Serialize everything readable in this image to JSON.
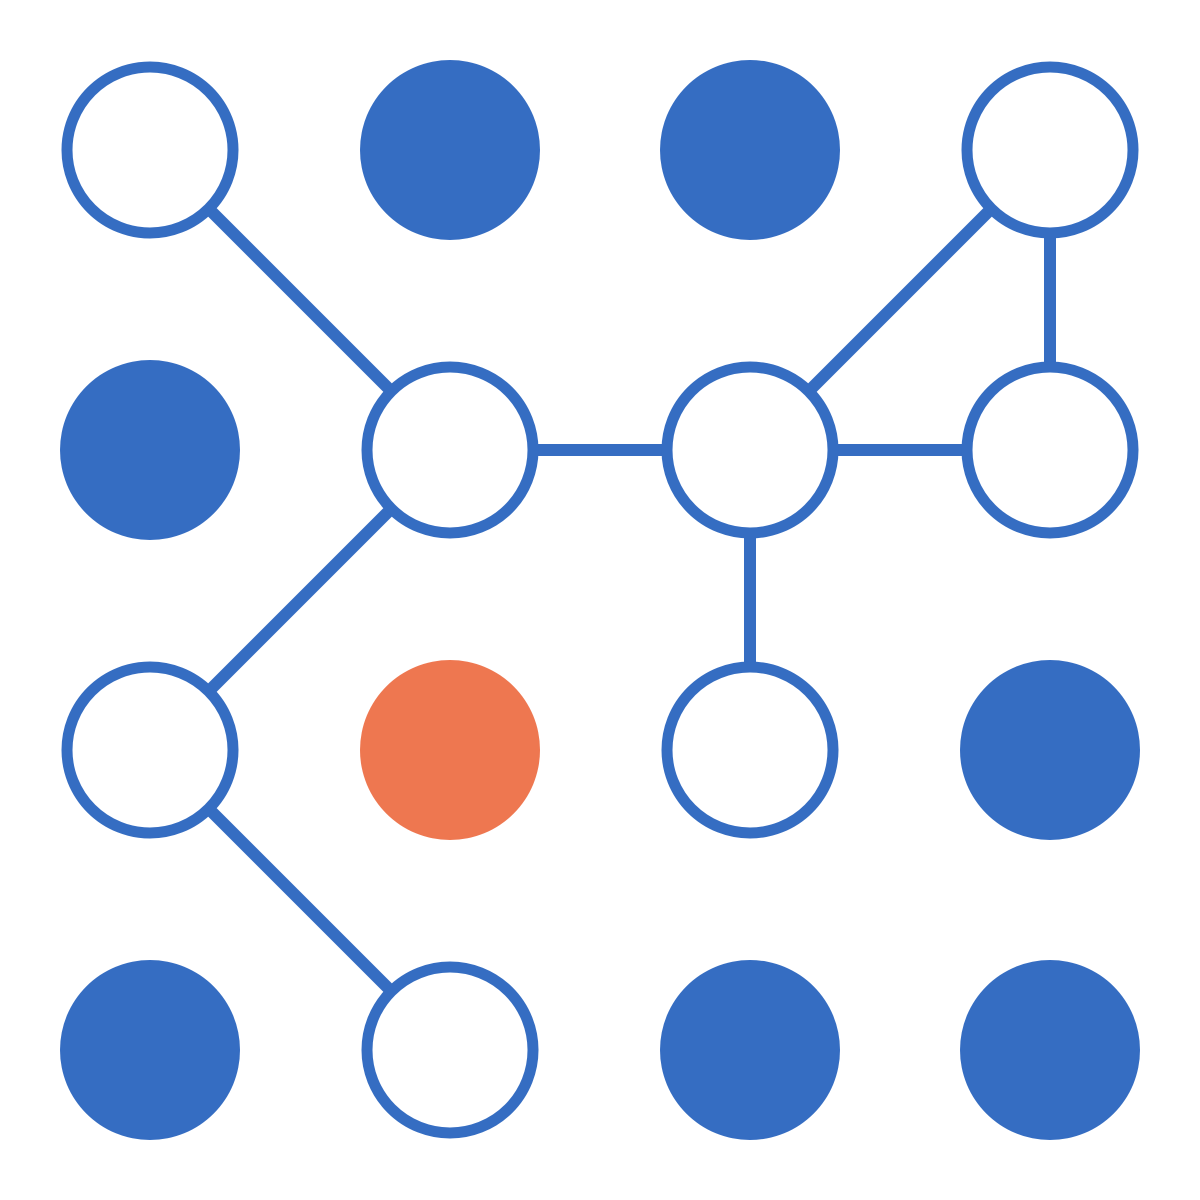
{
  "diagram": {
    "type": "grid-graph",
    "rows": 4,
    "cols": 4,
    "colors": {
      "primary": "#356DC2",
      "highlight": "#EE7750",
      "background": "#FFFFFF"
    },
    "nodes": [
      {
        "id": "r0c0",
        "row": 0,
        "col": 0,
        "state": "open"
      },
      {
        "id": "r0c1",
        "row": 0,
        "col": 1,
        "state": "filled"
      },
      {
        "id": "r0c2",
        "row": 0,
        "col": 2,
        "state": "filled"
      },
      {
        "id": "r0c3",
        "row": 0,
        "col": 3,
        "state": "open"
      },
      {
        "id": "r1c0",
        "row": 1,
        "col": 0,
        "state": "filled"
      },
      {
        "id": "r1c1",
        "row": 1,
        "col": 1,
        "state": "open"
      },
      {
        "id": "r1c2",
        "row": 1,
        "col": 2,
        "state": "open"
      },
      {
        "id": "r1c3",
        "row": 1,
        "col": 3,
        "state": "open"
      },
      {
        "id": "r2c0",
        "row": 2,
        "col": 0,
        "state": "open"
      },
      {
        "id": "r2c1",
        "row": 2,
        "col": 1,
        "state": "highlight"
      },
      {
        "id": "r2c2",
        "row": 2,
        "col": 2,
        "state": "open"
      },
      {
        "id": "r2c3",
        "row": 2,
        "col": 3,
        "state": "filled"
      },
      {
        "id": "r3c0",
        "row": 3,
        "col": 0,
        "state": "filled"
      },
      {
        "id": "r3c1",
        "row": 3,
        "col": 1,
        "state": "open"
      },
      {
        "id": "r3c2",
        "row": 3,
        "col": 2,
        "state": "filled"
      },
      {
        "id": "r3c3",
        "row": 3,
        "col": 3,
        "state": "filled"
      }
    ],
    "edges": [
      [
        "r0c0",
        "r1c1"
      ],
      [
        "r1c1",
        "r1c2"
      ],
      [
        "r1c2",
        "r1c3"
      ],
      [
        "r1c2",
        "r0c3"
      ],
      [
        "r0c3",
        "r1c3"
      ],
      [
        "r1c1",
        "r2c0"
      ],
      [
        "r1c2",
        "r2c2"
      ],
      [
        "r2c0",
        "r3c1"
      ]
    ]
  }
}
